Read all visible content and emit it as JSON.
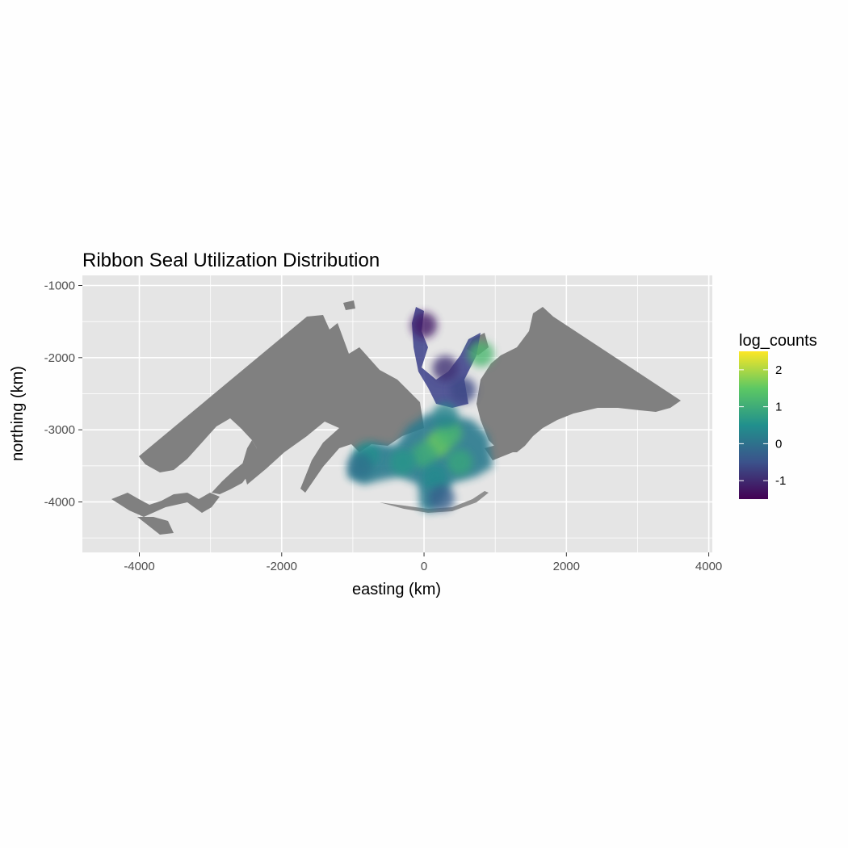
{
  "chart_data": {
    "type": "heatmap",
    "title": "Ribbon Seal Utilization Distribution",
    "xlabel": "easting (km)",
    "ylabel": "northing (km)",
    "xlim": [
      -4800,
      4050
    ],
    "ylim": [
      -4700,
      -860
    ],
    "x_ticks": [
      -4000,
      -2000,
      0,
      2000,
      4000
    ],
    "y_ticks": [
      -1000,
      -2000,
      -3000,
      -4000
    ],
    "x_tick_labels": [
      "-4000",
      "-2000",
      "0",
      "2000",
      "4000"
    ],
    "y_tick_labels": [
      "-1000",
      "-2000",
      "-3000",
      "-4000"
    ],
    "grid": true,
    "legend": {
      "title": "log_counts",
      "position": "right",
      "range": [
        -1.5,
        2.5
      ],
      "ticks": [
        2,
        1,
        0,
        -1
      ],
      "tick_labels": [
        "2",
        "1",
        "0",
        "-1"
      ],
      "colors": [
        "#440154",
        "#3b528b",
        "#21908d",
        "#5dc863",
        "#fde725"
      ]
    },
    "land_color": "#808080",
    "panel_color": "#e5e5e5",
    "grid_color": "#ffffff",
    "hotspots": [
      {
        "x": 200,
        "y": -3200,
        "value": 1.6
      },
      {
        "x": 350,
        "y": -3050,
        "value": 1.2
      },
      {
        "x": 0,
        "y": -3350,
        "value": 1.0
      },
      {
        "x": 500,
        "y": -3450,
        "value": 0.9
      },
      {
        "x": -300,
        "y": -3450,
        "value": 0.6
      },
      {
        "x": 150,
        "y": -3650,
        "value": 0.4
      },
      {
        "x": 250,
        "y": -3950,
        "value": -0.3
      },
      {
        "x": -800,
        "y": -3350,
        "value": 0.5
      },
      {
        "x": -900,
        "y": -3500,
        "value": 0.0
      },
      {
        "x": 300,
        "y": -2800,
        "value": 0.3
      },
      {
        "x": 550,
        "y": -2450,
        "value": -0.6
      },
      {
        "x": 300,
        "y": -2150,
        "value": -0.9
      },
      {
        "x": 800,
        "y": -1950,
        "value": 1.2
      },
      {
        "x": 0,
        "y": -1550,
        "value": -1.2
      }
    ]
  }
}
